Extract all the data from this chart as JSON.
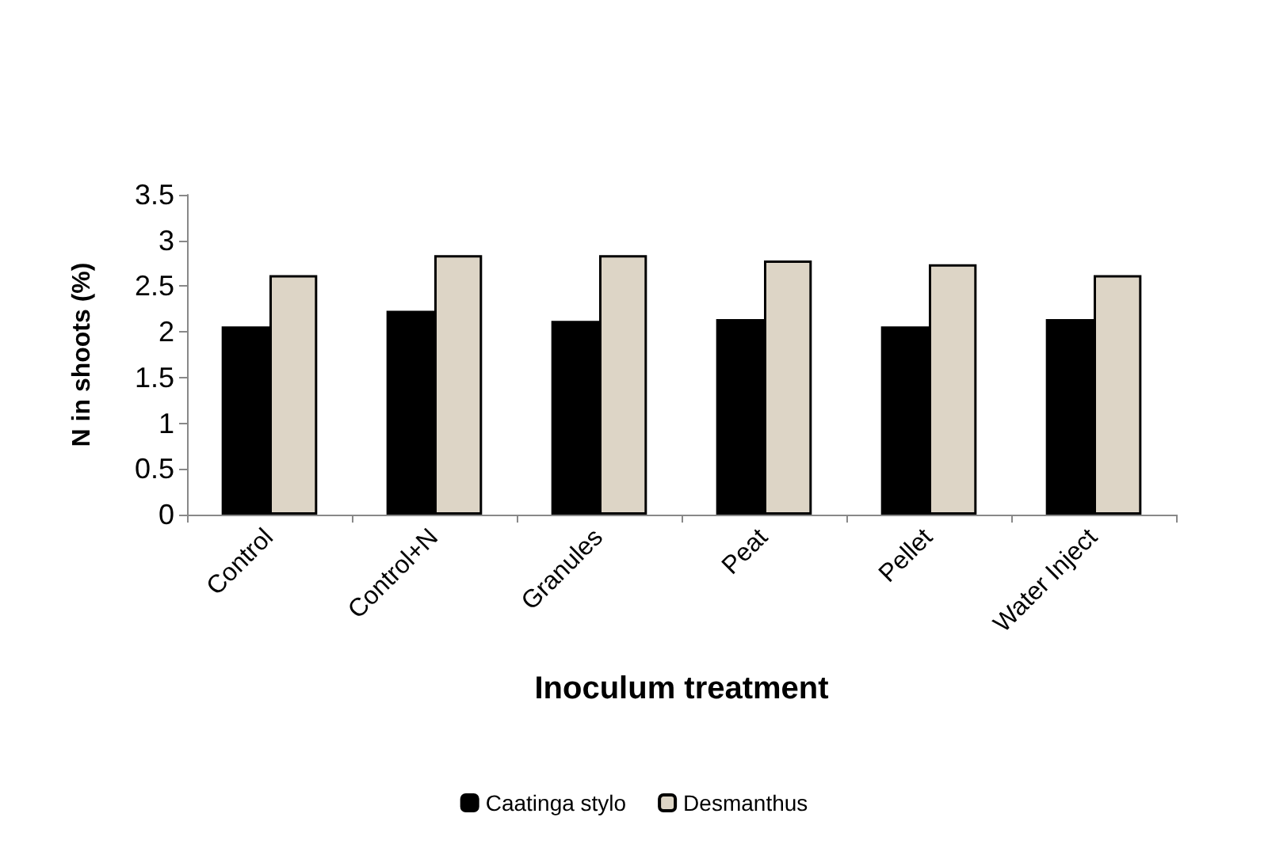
{
  "chart_data": {
    "type": "bar",
    "xlabel": "Inoculum treatment",
    "ylabel": "N in shoots (%)",
    "categories": [
      "Control",
      "Control+N",
      "Granules",
      "Peat",
      "Pellet",
      "Water Inject"
    ],
    "series": [
      {
        "name": "Caatinga stylo",
        "color": "#000000",
        "values": [
          2.06,
          2.23,
          2.12,
          2.14,
          2.06,
          2.14
        ]
      },
      {
        "name": "Desmanthus",
        "color": "#ddd5c6",
        "values": [
          2.62,
          2.84,
          2.84,
          2.78,
          2.74,
          2.62
        ]
      }
    ],
    "ylim": [
      0,
      3.5
    ],
    "yticks": [
      0,
      0.5,
      1,
      1.5,
      2,
      2.5,
      3,
      3.5
    ],
    "grid": false,
    "legend": "bottom"
  }
}
